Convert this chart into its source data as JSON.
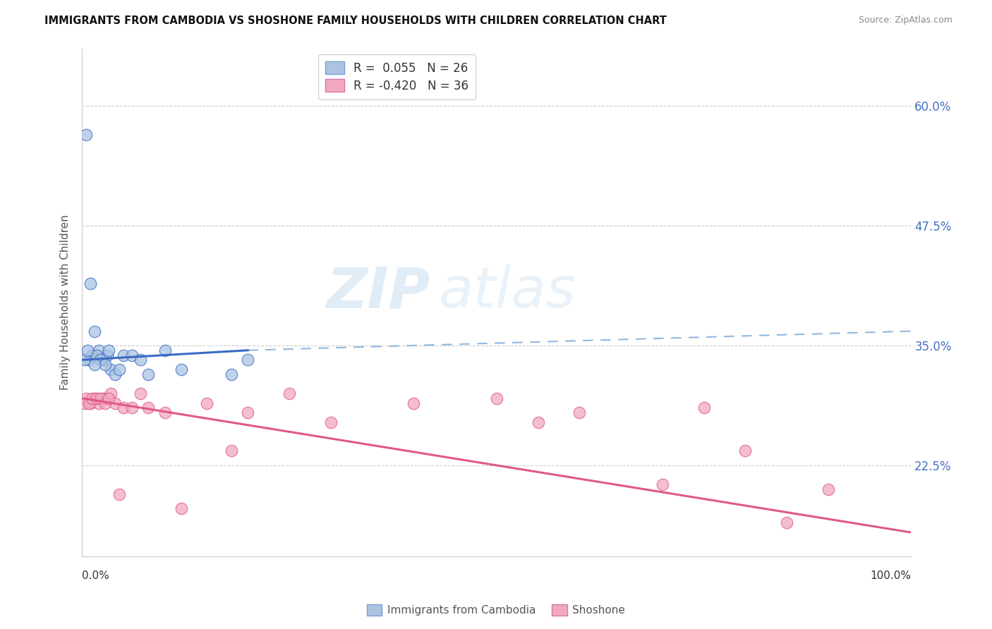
{
  "title": "IMMIGRANTS FROM CAMBODIA VS SHOSHONE FAMILY HOUSEHOLDS WITH CHILDREN CORRELATION CHART",
  "source": "Source: ZipAtlas.com",
  "ylabel": "Family Households with Children",
  "ytick_labels": [
    "22.5%",
    "35.0%",
    "47.5%",
    "60.0%"
  ],
  "ytick_values": [
    22.5,
    35.0,
    47.5,
    60.0
  ],
  "xlim": [
    0.0,
    100.0
  ],
  "ylim": [
    13.0,
    66.0
  ],
  "legend_label1": "R =  0.055   N = 26",
  "legend_label2": "R = -0.420   N = 36",
  "legend_x_label": "Immigrants from Cambodia",
  "legend_y_label": "Shoshone",
  "color_blue": "#aac4e2",
  "color_pink": "#f2a8c0",
  "line_blue": "#3b6bc4",
  "line_pink": "#e05888",
  "dashed_blue": "#90b8e0",
  "watermark_top": "ZIP",
  "watermark_bottom": "atlas",
  "blue_scatter_x": [
    0.5,
    1.0,
    1.5,
    2.0,
    2.5,
    3.0,
    3.5,
    4.0,
    5.0,
    6.0,
    7.0,
    8.0,
    10.0,
    12.0,
    0.8,
    1.2,
    1.8,
    2.2,
    2.8,
    3.2,
    4.5,
    20.0,
    18.0,
    0.3,
    0.7,
    1.5
  ],
  "blue_scatter_y": [
    57.0,
    41.5,
    36.5,
    34.5,
    33.5,
    34.0,
    32.5,
    32.0,
    34.0,
    34.0,
    33.5,
    32.0,
    34.5,
    32.5,
    33.5,
    34.0,
    34.0,
    33.5,
    33.0,
    34.5,
    32.5,
    33.5,
    32.0,
    33.5,
    34.5,
    33.0
  ],
  "pink_scatter_x": [
    0.5,
    1.0,
    1.5,
    2.0,
    2.5,
    3.0,
    3.5,
    4.0,
    5.0,
    6.0,
    7.0,
    8.0,
    10.0,
    15.0,
    20.0,
    25.0,
    30.0,
    40.0,
    50.0,
    55.0,
    60.0,
    70.0,
    75.0,
    80.0,
    90.0,
    0.3,
    0.8,
    1.2,
    1.8,
    2.2,
    2.8,
    3.2,
    4.5,
    12.0,
    18.0,
    85.0
  ],
  "pink_scatter_y": [
    29.5,
    29.0,
    29.5,
    29.0,
    29.5,
    29.5,
    30.0,
    29.0,
    28.5,
    28.5,
    30.0,
    28.5,
    28.0,
    29.0,
    28.0,
    30.0,
    27.0,
    29.0,
    29.5,
    27.0,
    28.0,
    20.5,
    28.5,
    24.0,
    20.0,
    29.0,
    29.0,
    29.5,
    29.5,
    29.5,
    29.0,
    29.5,
    19.5,
    18.0,
    24.0,
    16.5
  ],
  "blue_line_x0": 0.0,
  "blue_line_x1": 20.0,
  "blue_line_y0": 33.5,
  "blue_line_y1": 34.5,
  "blue_dashed_x0": 20.0,
  "blue_dashed_x1": 100.0,
  "blue_dashed_y0": 34.5,
  "blue_dashed_y1": 36.5,
  "pink_line_x0": 0.0,
  "pink_line_x1": 100.0,
  "pink_line_y0": 29.5,
  "pink_line_y1": 15.5
}
